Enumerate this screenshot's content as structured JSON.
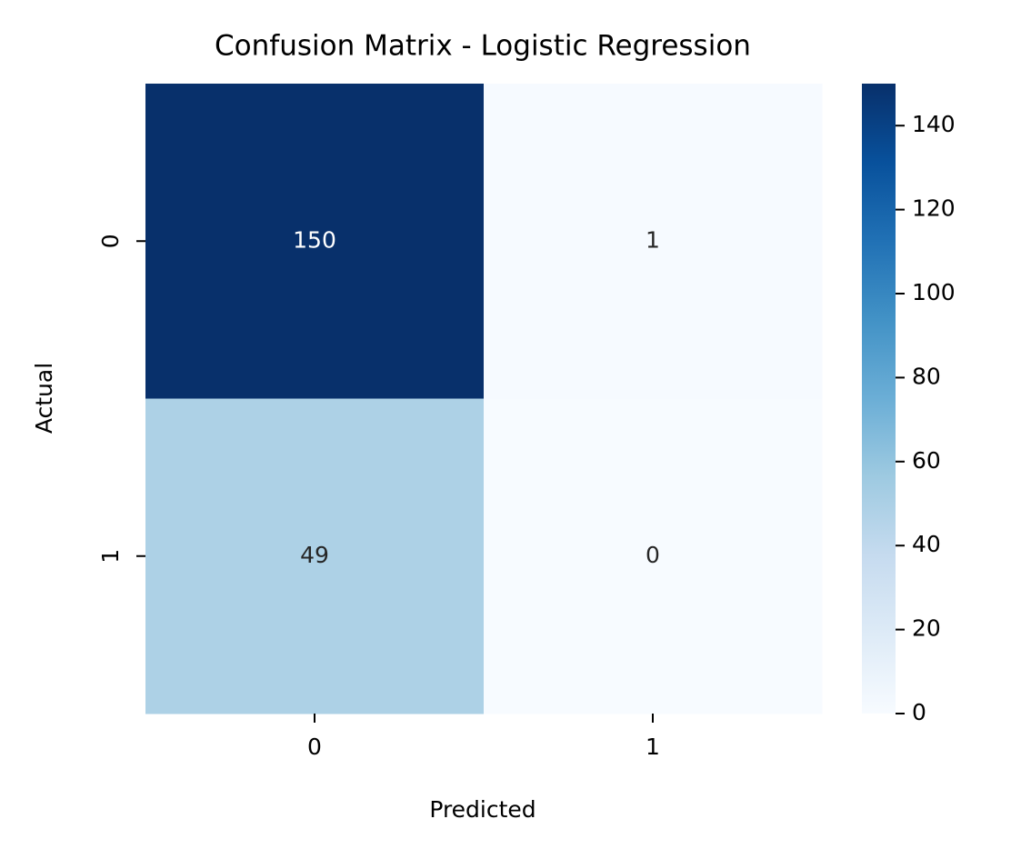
{
  "chart_data": {
    "type": "heatmap",
    "title": "Confusion Matrix - Logistic Regression",
    "x_label": "Predicted",
    "y_label": "Actual",
    "x_categories": [
      "0",
      "1"
    ],
    "y_categories": [
      "0",
      "1"
    ],
    "values": [
      [
        150,
        1
      ],
      [
        49,
        0
      ]
    ],
    "colormap": "Blues",
    "colorbar_lim": [
      0,
      150
    ],
    "colorbar_ticks": [
      0,
      20,
      40,
      60,
      80,
      100,
      120,
      140
    ]
  }
}
